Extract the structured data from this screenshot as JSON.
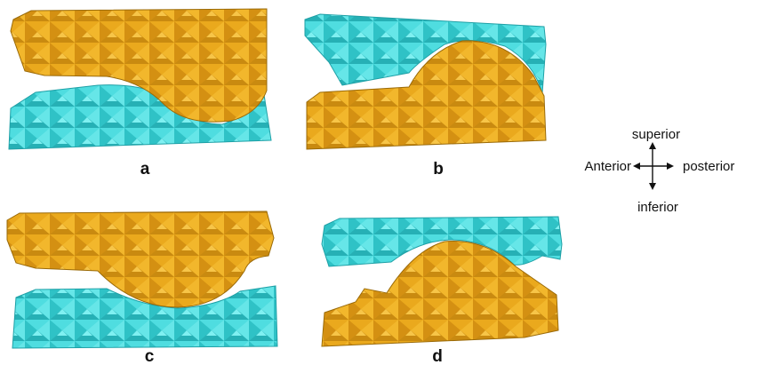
{
  "panels": [
    {
      "id": "a",
      "label": "a",
      "upper_color": "#E8A417",
      "lower_color": "#3FD6D9"
    },
    {
      "id": "b",
      "label": "b",
      "upper_color": "#3FD6D9",
      "lower_color": "#E8A417"
    },
    {
      "id": "c",
      "label": "c",
      "upper_color": "#E8A417",
      "lower_color": "#3FD6D9"
    },
    {
      "id": "d",
      "label": "d",
      "upper_color": "#3FD6D9",
      "lower_color": "#E8A417"
    }
  ],
  "orientation": {
    "superior": "superior",
    "inferior": "inferior",
    "anterior": "Anterior",
    "posterior": "posterior"
  },
  "colors": {
    "gold": "#E8A417",
    "cyan": "#3FD6D9",
    "edge": "#9a6a08",
    "edge_cyan": "#1fa0a6"
  }
}
